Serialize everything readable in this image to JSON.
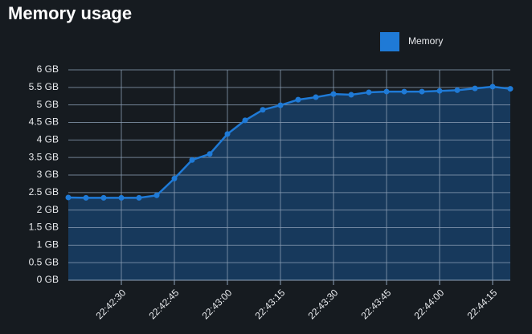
{
  "chart_data": {
    "type": "line",
    "title": "Memory usage",
    "series": [
      {
        "name": "Memory",
        "color": "#1f7ad6",
        "values": [
          2.36,
          2.35,
          2.35,
          2.35,
          2.35,
          2.42,
          2.9,
          3.43,
          3.6,
          4.17,
          4.56,
          4.86,
          4.99,
          5.15,
          5.22,
          5.31,
          5.29,
          5.36,
          5.38,
          5.38,
          5.38,
          5.4,
          5.42,
          5.47,
          5.52,
          5.46
        ]
      }
    ],
    "x": [
      "22:42:15",
      "22:42:20",
      "22:42:25",
      "22:42:30",
      "22:42:35",
      "22:42:40",
      "22:42:45",
      "22:42:50",
      "22:42:55",
      "22:43:00",
      "22:43:05",
      "22:43:10",
      "22:43:15",
      "22:43:20",
      "22:43:25",
      "22:43:30",
      "22:43:35",
      "22:43:40",
      "22:43:45",
      "22:43:50",
      "22:43:55",
      "22:44:00",
      "22:44:05",
      "22:44:10",
      "22:44:15",
      "22:44:20"
    ],
    "xlim": [
      "22:42:15",
      "22:44:20"
    ],
    "xticks": [
      "22:42:30",
      "22:42:45",
      "22:43:00",
      "22:43:15",
      "22:43:30",
      "22:43:45",
      "22:44:00",
      "22:44:15"
    ],
    "ylim": [
      0,
      6
    ],
    "yticks": [
      {
        "value": 0,
        "label": "0 GB"
      },
      {
        "value": 0.5,
        "label": "0.5 GB"
      },
      {
        "value": 1,
        "label": "1 GB"
      },
      {
        "value": 1.5,
        "label": "1.5 GB"
      },
      {
        "value": 2,
        "label": "2 GB"
      },
      {
        "value": 2.5,
        "label": "2.5 GB"
      },
      {
        "value": 3,
        "label": "3 GB"
      },
      {
        "value": 3.5,
        "label": "3.5 GB"
      },
      {
        "value": 4,
        "label": "4 GB"
      },
      {
        "value": 4.5,
        "label": "4.5 GB"
      },
      {
        "value": 5,
        "label": "5 GB"
      },
      {
        "value": 5.5,
        "label": "5.5 GB"
      },
      {
        "value": 6,
        "label": "6 GB"
      }
    ],
    "grid": true,
    "legend": "top-right"
  }
}
